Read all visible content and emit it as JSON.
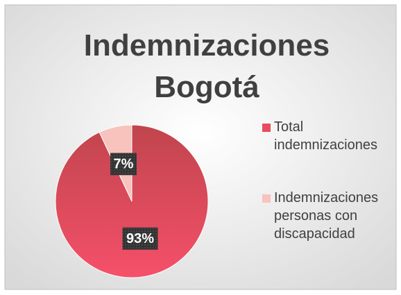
{
  "chart_data": {
    "type": "pie",
    "title": "Indemnizaciones Bogotá",
    "categories": [
      "Total indemnizaciones",
      "Indemnizaciones personas con discapacidad"
    ],
    "values": [
      93,
      7
    ],
    "value_labels": [
      "93%",
      "7%"
    ],
    "colors": [
      "#e84a5f",
      "#f8c3bc"
    ],
    "legend": "right"
  }
}
